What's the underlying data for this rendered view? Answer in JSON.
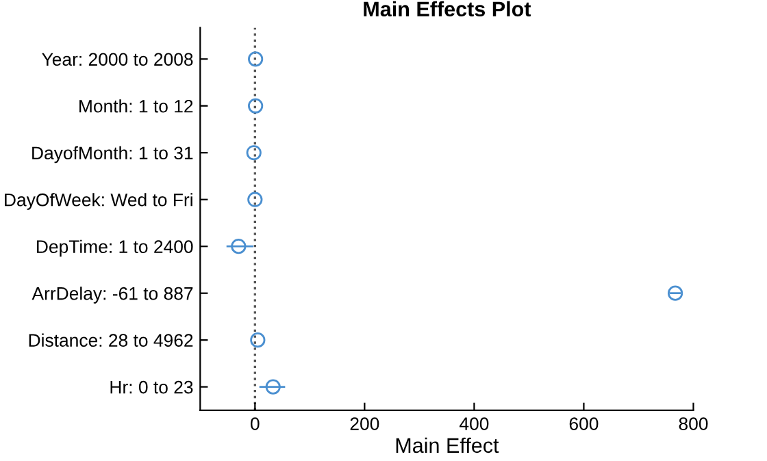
{
  "chart_data": {
    "type": "scatter",
    "orientation": "horizontal",
    "title": "Main Effects Plot",
    "xlabel": "Main Effect",
    "categories": [
      "Year: 2000 to 2008",
      "Month: 1 to 12",
      "DayofMonth: 1 to 31",
      "DayOfWeek: Wed to Fri",
      "DepTime: 1 to 2400",
      "ArrDelay: -61 to 887",
      "Distance: 28 to 4962",
      "Hr: 0 to 23"
    ],
    "values": [
      1,
      1,
      -2,
      0,
      -30,
      767,
      5,
      33
    ],
    "errors": [
      null,
      null,
      null,
      null,
      [
        -52,
        -3
      ],
      [
        757,
        777
      ],
      null,
      [
        8,
        55
      ]
    ],
    "color": "#4a8fd0",
    "marker": "circle",
    "xlim": [
      -100,
      800
    ],
    "xticks": [
      0,
      200,
      400,
      600,
      800
    ],
    "ref_lines": [
      {
        "axis": "x",
        "value": 0,
        "color": "#555555",
        "line_style": "dotted"
      }
    ],
    "grid": false,
    "legend": false
  }
}
